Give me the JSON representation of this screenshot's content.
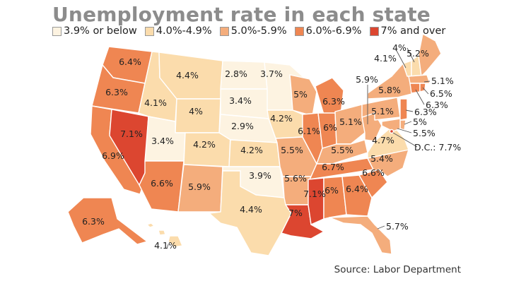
{
  "title": "Unemployment rate in each state",
  "legend": [
    {
      "label": "3.9% or below",
      "color": "#fdf3e1"
    },
    {
      "label": "4.0%-4.9%",
      "color": "#fbdcac"
    },
    {
      "label": "5.0%-5.9%",
      "color": "#f4ad7c"
    },
    {
      "label": "6.0%-6.9%",
      "color": "#ef8652"
    },
    {
      "label": "7% and over",
      "color": "#dc4630"
    }
  ],
  "source": "Source: Labor Department",
  "states": {
    "WA": "6.4%",
    "OR": "6.3%",
    "CA": "6.9%",
    "NV": "7.1%",
    "ID": "4.1%",
    "MT": "4.4%",
    "WY": "4%",
    "UT": "3.4%",
    "AZ": "6.6%",
    "CO": "4.2%",
    "NM": "5.9%",
    "ND": "2.8%",
    "SD": "3.4%",
    "NE": "2.9%",
    "KS": "4.2%",
    "OK": "3.9%",
    "TX": "4.4%",
    "MN": "3.7%",
    "IA": "4.2%",
    "MO": "5.5%",
    "AR": "5.6%",
    "LA": "7%",
    "WI": "5%",
    "IL": "6.1%",
    "MS": "7.1%",
    "MI": "6.3%",
    "IN": "6%",
    "KY": "5.5%",
    "TN": "6.7%",
    "AL": "6%",
    "OH": "5.1%",
    "GA": "6.4%",
    "FL": "5.7%",
    "SC": "6.6%",
    "NC": "5.4%",
    "VA": "4.7%",
    "WV": "5.9%",
    "PA": "5.1%",
    "NY": "5.8%",
    "VT": "4.1%",
    "NH": "4%",
    "ME": "5.2%",
    "MA": "5.1%",
    "RI": "6.5%",
    "CT": "6.3%",
    "NJ": "6.3%",
    "DE": "5%",
    "MD": "5.5%",
    "DC": "D.C.: 7.7%",
    "AK": "6.3%",
    "HI": "4.1%"
  }
}
